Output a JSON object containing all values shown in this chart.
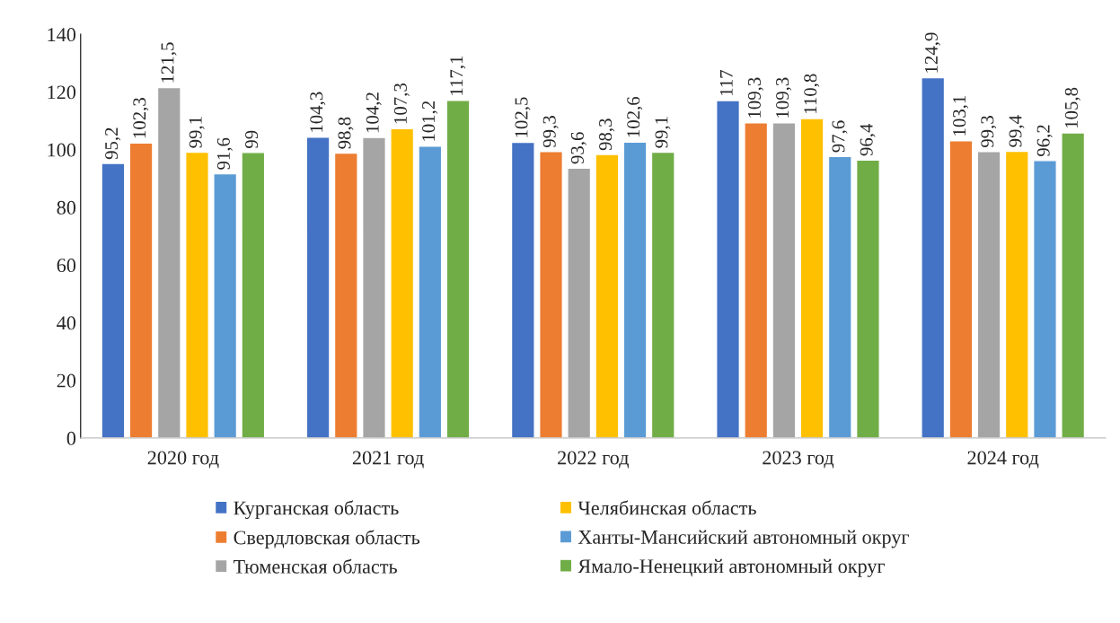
{
  "chart_data": {
    "type": "bar",
    "categories": [
      "2020 год",
      "2021 год",
      "2022 год",
      "2023 год",
      "2024 год"
    ],
    "series": [
      {
        "name": "Курганская область",
        "color": "#4472c4",
        "values": [
          95.2,
          104.3,
          102.5,
          117,
          124.9
        ],
        "value_labels": [
          "95,2",
          "104,3",
          "102,5",
          "117",
          "124,9"
        ]
      },
      {
        "name": "Свердловская область",
        "color": "#ed7d31",
        "values": [
          102.3,
          98.8,
          99.3,
          109.3,
          103.1
        ],
        "value_labels": [
          "102,3",
          "98,8",
          "99,3",
          "109,3",
          "103,1"
        ]
      },
      {
        "name": "Тюменская область",
        "color": "#a5a5a5",
        "values": [
          121.5,
          104.2,
          93.6,
          109.3,
          99.3
        ],
        "value_labels": [
          "121,5",
          "104,2",
          "93,6",
          "109,3",
          "99,3"
        ]
      },
      {
        "name": "Челябинская область",
        "color": "#ffc000",
        "values": [
          99.1,
          107.3,
          98.3,
          110.8,
          99.4
        ],
        "value_labels": [
          "99,1",
          "107,3",
          "98,3",
          "110,8",
          "99,4"
        ]
      },
      {
        "name": "Ханты-Мансийский автономный округ",
        "color": "#5b9bd5",
        "values": [
          91.6,
          101.2,
          102.6,
          97.6,
          96.2
        ],
        "value_labels": [
          "91,6",
          "101,2",
          "102,6",
          "97,6",
          "96,2"
        ]
      },
      {
        "name": "Ямало-Ненецкий автономный округ",
        "color": "#70ad47",
        "values": [
          99,
          117.1,
          99.1,
          96.4,
          105.8
        ],
        "value_labels": [
          "99",
          "117,1",
          "99,1",
          "96,4",
          "105,8"
        ]
      }
    ],
    "ylim": [
      0,
      140
    ],
    "yticks": [
      0,
      20,
      40,
      60,
      80,
      100,
      120,
      140
    ],
    "grid": false,
    "legend": "bottom"
  }
}
